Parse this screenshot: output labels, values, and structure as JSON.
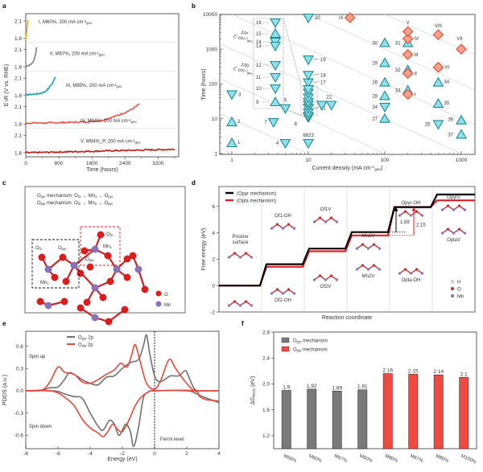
{
  "panel_labels": [
    "a",
    "b",
    "c",
    "d",
    "e",
    "f"
  ],
  "chart_data": [
    {
      "panel": "a",
      "type": "line",
      "xlabel": "Time (hours)",
      "ylabel": "E-iR (V vs. RHE)",
      "x_ticks": [
        0,
        800,
        1600,
        2400,
        3200
      ],
      "xlim": [
        0,
        3700
      ],
      "y_ticks_per_row": [
        2.1,
        1.8
      ],
      "series": [
        {
          "name": "I, M60%, 200 mA cm-2geo",
          "label_main": "I, M60%, 200 mA cm",
          "label_sup": "-2",
          "label_sub": "geo",
          "color": "#e8b020",
          "x": [
            0,
            10,
            20,
            30,
            40,
            50
          ],
          "y": [
            1.78,
            1.85,
            1.9,
            1.96,
            2.05,
            2.12
          ]
        },
        {
          "name": "II, M67%, 200 mA cm-2geo",
          "label_main": "II, M67%, 200 mA cm",
          "label_sup": "-2",
          "label_sub": "geo",
          "color": "#808080",
          "x": [
            0,
            50,
            100,
            150,
            200,
            230,
            260
          ],
          "y": [
            1.8,
            1.82,
            1.84,
            1.86,
            1.92,
            2.0,
            2.14
          ]
        },
        {
          "name": "III, M85%, 200 mA cm-2geo",
          "label_main": "III, M85%, 200 mA cm",
          "label_sup": "-2",
          "label_sub": "geo",
          "color": "#1e9ab8",
          "x": [
            0,
            150,
            300,
            450,
            550,
            650,
            720
          ],
          "y": [
            1.81,
            1.82,
            1.83,
            1.86,
            1.92,
            2.02,
            2.12
          ]
        },
        {
          "name": "IV, M94%, 200 mA cm-2geo",
          "label_main": "IV, M94%, 200 mA cm",
          "label_sup": "-2",
          "label_sub": "geo",
          "color": "#e8564a",
          "x": [
            0,
            500,
            1000,
            1500,
            1800,
            2100,
            2400,
            2600,
            2750
          ],
          "y": [
            1.82,
            1.82,
            1.83,
            1.84,
            1.86,
            1.92,
            2.0,
            2.07,
            2.15
          ]
        },
        {
          "name": "V, M94%_P, 200 mA cm-2geo",
          "label_main": "V, M94%_P, 200 mA cm",
          "label_sup": "-2",
          "label_sub": "geo",
          "color": "#c01a14",
          "x": [
            0,
            600,
            1200,
            1800,
            2400,
            3000,
            3600
          ],
          "y": [
            1.8,
            1.81,
            1.82,
            1.83,
            1.84,
            1.85,
            1.86
          ]
        }
      ]
    },
    {
      "panel": "b",
      "type": "scatter",
      "xlabel": "Current density (mA cm-2geo)",
      "xlabel_main": "Current density (mA cm",
      "xlabel_sup": "-2",
      "xlabel_sub": "geo",
      "xlabel_end": ")",
      "ylabel": "Time (hours)",
      "xscale": "log",
      "yscale": "log",
      "xlim": [
        0.85,
        1200
      ],
      "ylim": [
        1,
        10000
      ],
      "x_ticks": [
        "1",
        "10",
        "100",
        "1000"
      ],
      "y_ticks": [
        "1",
        "10",
        "100",
        "1000",
        "10000"
      ],
      "iso_labels": [
        {
          "text": "10",
          "sup": "4",
          "line2": "C cm",
          "sup2": "-2",
          "sub2": "geo"
        },
        {
          "text": "100",
          "sup": "",
          "line2": "C cm",
          "sup2": "-2",
          "sub2": "geo"
        }
      ],
      "points_triangle_up": [
        {
          "id": "1",
          "x": 1,
          "y": 2
        },
        {
          "id": "2",
          "x": 1,
          "y": 8
        },
        {
          "id": "15",
          "x": 1,
          "y": 2500,
          "inset": true
        },
        {
          "id": "9",
          "x": 1,
          "y": 23,
          "inset": true
        },
        {
          "id": "30",
          "x": 100,
          "y": 1500
        },
        {
          "id": "29",
          "x": 100,
          "y": 400
        },
        {
          "id": "26",
          "x": 100,
          "y": 110
        },
        {
          "id": "28",
          "x": 100,
          "y": 45
        },
        {
          "id": "27",
          "x": 100,
          "y": 10
        },
        {
          "id": "31",
          "x": 200,
          "y": 1500
        },
        {
          "id": "32",
          "x": 200,
          "y": 250
        },
        {
          "id": "33",
          "x": 200,
          "y": 65
        },
        {
          "id": "34",
          "x": 500,
          "y": 110
        },
        {
          "id": "35",
          "x": 500,
          "y": 27
        },
        {
          "id": "36",
          "x": 1000,
          "y": 9
        },
        {
          "id": "37",
          "x": 1000,
          "y": 3.5
        }
      ],
      "points_triangle_down": [
        {
          "id": "3",
          "x": 1,
          "y": 50
        },
        {
          "id": "4",
          "x": 5,
          "y": 2
        },
        {
          "id": "5",
          "x": 5,
          "y": 20
        },
        {
          "id": "7",
          "x": 3.5,
          "y": 8
        },
        {
          "id": "6823",
          "x": 10,
          "y": 2
        },
        {
          "id": "8",
          "x": 10,
          "y": 11
        },
        {
          "id": "21",
          "x": 10,
          "y": 20
        },
        {
          "id": "17",
          "x": 10,
          "y": 110
        },
        {
          "id": "18",
          "x": 10,
          "y": 180
        },
        {
          "id": "19",
          "x": 10,
          "y": 500
        },
        {
          "id": "20",
          "x": 10,
          "y": 8000
        },
        {
          "id": "22",
          "x": 15,
          "y": 25
        },
        {
          "id": "22b",
          "x": 20,
          "y": 25
        },
        {
          "id": "24",
          "x": 100,
          "y": 22
        },
        {
          "id": "25",
          "x": 500,
          "y": 7
        },
        {
          "id": "16",
          "x": 1,
          "y": 7000,
          "inset": true
        },
        {
          "id": "14",
          "x": 1,
          "y": 1400,
          "inset": true
        },
        {
          "id": "13",
          "x": 1,
          "y": 1000,
          "inset": true
        },
        {
          "id": "12",
          "x": 1,
          "y": 330,
          "inset": true
        },
        {
          "id": "11",
          "x": 1,
          "y": 150,
          "inset": true
        },
        {
          "id": "10",
          "x": 1,
          "y": 75,
          "inset": true
        }
      ],
      "points_diamond": [
        {
          "id": "I",
          "x": 200,
          "y": 50
        },
        {
          "id": "II",
          "x": 200,
          "y": 200
        },
        {
          "id": "III",
          "x": 200,
          "y": 700
        },
        {
          "id": "IV",
          "x": 200,
          "y": 2000
        },
        {
          "id": "V",
          "x": 200,
          "y": 3200
        },
        {
          "id": "VI",
          "x": 500,
          "y": 300
        },
        {
          "id": "VII",
          "x": 1000,
          "y": 1000
        },
        {
          "id": "VIII",
          "x": 500,
          "y": 2600
        },
        {
          "id": "IX",
          "x": 35,
          "y": 8000
        }
      ],
      "cluster_values_at_10": [
        12,
        15,
        20,
        25,
        30,
        40,
        55,
        70
      ]
    },
    {
      "panel": "d",
      "type": "line",
      "xlabel": "Reaction coordinate",
      "ylabel": "Free energy (eV)",
      "ylim": [
        -2,
        7.5
      ],
      "y_ticks": [
        -2,
        0,
        2,
        4,
        6
      ],
      "series": [
        {
          "name": "(Opyr mechanism)",
          "color": "#000000",
          "levels": [
            0,
            1.62,
            2.8,
            4.05,
            5.94,
            6.9
          ]
        },
        {
          "name": "(Opla mechanism)",
          "color": "#e02020",
          "levels": [
            0,
            1.42,
            2.6,
            3.8,
            5.95,
            6.45
          ]
        }
      ],
      "step_labels_top": [
        "Pristine surface",
        "Of1-OH",
        "Of1V",
        "Mn1V",
        "Opyr-OH",
        "OpyrV"
      ],
      "step_labels_bottom": [
        "",
        "Of2-OH",
        "Of2V",
        "Mn2V",
        "Opla-OH",
        "OplaV"
      ],
      "annotations": [
        {
          "text": "1.89",
          "color": "#000000"
        },
        {
          "text": "2.15",
          "color": "#e02020"
        }
      ],
      "legend_atoms": [
        "H",
        "O",
        "Mn"
      ]
    },
    {
      "panel": "e",
      "type": "line",
      "xlabel": "Energy (eV)",
      "ylabel": "PDOS (a.u.)",
      "xlim": [
        -8,
        4
      ],
      "ylim": [
        -0.78,
        0.8
      ],
      "x_ticks": [
        -8,
        -6,
        -4,
        -2,
        0,
        2,
        4
      ],
      "y_ticks": [
        0.6,
        0.3,
        0.0,
        -0.3,
        -0.6
      ],
      "annotations": [
        "Spin up",
        "Spin down",
        "Fermi level"
      ],
      "series": [
        {
          "name": "Opyr 2p",
          "color": "#707070",
          "up": [
            [
              -8,
              0
            ],
            [
              -7,
              0.01
            ],
            [
              -6.5,
              0.04
            ],
            [
              -6,
              0.05
            ],
            [
              -5.6,
              0.15
            ],
            [
              -5.3,
              0.24
            ],
            [
              -5,
              0.22
            ],
            [
              -4.5,
              0.15
            ],
            [
              -4,
              0.1
            ],
            [
              -3.5,
              0.08
            ],
            [
              -3,
              0.18
            ],
            [
              -2.5,
              0.2
            ],
            [
              -2,
              0.3
            ],
            [
              -1.5,
              0.38
            ],
            [
              -1,
              0.42
            ],
            [
              -0.7,
              0.6
            ],
            [
              -0.5,
              0.75
            ],
            [
              -0.3,
              0.5
            ],
            [
              0,
              0.2
            ],
            [
              0.3,
              0.12
            ],
            [
              0.7,
              0.16
            ],
            [
              1,
              0.2
            ],
            [
              1.5,
              0.2
            ],
            [
              1.9,
              0.27
            ],
            [
              2.1,
              0.2
            ],
            [
              2.5,
              0.02
            ],
            [
              3,
              0
            ],
            [
              4,
              0
            ]
          ],
          "down": [
            [
              -8,
              0
            ],
            [
              -6.5,
              0
            ],
            [
              -6,
              -0.01
            ],
            [
              -5.5,
              -0.05
            ],
            [
              -5,
              -0.08
            ],
            [
              -4.5,
              -0.1
            ],
            [
              -4,
              -0.3
            ],
            [
              -3.5,
              -0.48
            ],
            [
              -3.2,
              -0.53
            ],
            [
              -2.8,
              -0.4
            ],
            [
              -2.5,
              -0.45
            ],
            [
              -2.2,
              -0.6
            ],
            [
              -1.8,
              -0.45
            ],
            [
              -1.5,
              -0.55
            ],
            [
              -1.3,
              -0.75
            ],
            [
              -1,
              -0.5
            ],
            [
              -0.7,
              -0.1
            ],
            [
              -0.4,
              -0.02
            ],
            [
              0,
              0
            ],
            [
              2,
              0
            ],
            [
              2.5,
              -0.03
            ],
            [
              3,
              -0.08
            ],
            [
              3.5,
              -0.12
            ],
            [
              4,
              -0.16
            ]
          ]
        },
        {
          "name": "Opla 2p",
          "color": "#e8483c",
          "up": [
            [
              -8,
              0
            ],
            [
              -7,
              0.01
            ],
            [
              -6.5,
              0.12
            ],
            [
              -6,
              0.32
            ],
            [
              -5.6,
              0.25
            ],
            [
              -5,
              0.22
            ],
            [
              -4.5,
              0.12
            ],
            [
              -4,
              0.1
            ],
            [
              -3.5,
              0.15
            ],
            [
              -3,
              0.22
            ],
            [
              -2.5,
              0.28
            ],
            [
              -2.1,
              0.37
            ],
            [
              -1.7,
              0.32
            ],
            [
              -1.4,
              0.5
            ],
            [
              -1.2,
              0.62
            ],
            [
              -0.9,
              0.4
            ],
            [
              -0.5,
              0.1
            ],
            [
              0,
              0.02
            ],
            [
              0.4,
              0.15
            ],
            [
              0.9,
              0.42
            ],
            [
              1.3,
              0.3
            ],
            [
              1.8,
              0.15
            ],
            [
              2.2,
              0.05
            ],
            [
              2.6,
              0
            ],
            [
              4,
              0
            ]
          ],
          "down": [
            [
              -8,
              0
            ],
            [
              -6.6,
              0
            ],
            [
              -6,
              -0.03
            ],
            [
              -5.5,
              -0.1
            ],
            [
              -5,
              -0.2
            ],
            [
              -4.5,
              -0.38
            ],
            [
              -4,
              -0.5
            ],
            [
              -3.5,
              -0.57
            ],
            [
              -3.2,
              -0.62
            ],
            [
              -2.9,
              -0.55
            ],
            [
              -2.6,
              -0.45
            ],
            [
              -2.3,
              -0.52
            ],
            [
              -2,
              -0.55
            ],
            [
              -1.6,
              -0.4
            ],
            [
              -1.2,
              -0.2
            ],
            [
              -0.8,
              -0.08
            ],
            [
              -0.4,
              -0.02
            ],
            [
              0,
              0
            ],
            [
              2.4,
              0
            ],
            [
              2.8,
              -0.08
            ],
            [
              3.2,
              -0.12
            ],
            [
              3.6,
              -0.13
            ],
            [
              4,
              -0.14
            ]
          ]
        }
      ]
    },
    {
      "panel": "f",
      "type": "bar",
      "ylabel": "ΔGPDS (eV)",
      "ylabel_main": "ΔG",
      "ylabel_sub": "PDS",
      "ylabel_end": " (eV)",
      "ylim": [
        1.0,
        2.8
      ],
      "y_ticks": [
        1.2,
        1.6,
        2.0,
        2.4,
        2.8
      ],
      "categories": [
        "M50%",
        "M60%",
        "M67%",
        "M50%",
        "M80%",
        "M67%",
        "M80%",
        "M100%"
      ],
      "values": [
        1.9,
        1.92,
        1.89,
        1.91,
        2.16,
        2.15,
        2.14,
        2.1
      ],
      "value_labels": [
        "1.9",
        "1.92",
        "1.89",
        "1.91",
        "2.16",
        "2.15",
        "2.14",
        "2.1"
      ],
      "groups": [
        "Opyr",
        "Opyr",
        "Opyr",
        "Opyr",
        "Opla",
        "Opla",
        "Opla",
        "Opla"
      ],
      "legend": [
        {
          "name": "Opyr mechanism",
          "main": "O",
          "sub": "pyr",
          "rest": " mechanism",
          "color": "#7a7a7a"
        },
        {
          "name": "Opla mechanism",
          "main": "O",
          "sub": "pla",
          "rest": " mechanism",
          "color": "#f04a40"
        }
      ]
    }
  ],
  "panel_c": {
    "line1": {
      "a": "O",
      "a_sub": "pyr",
      "b": " mechanism:  O",
      "b_sub": "f1",
      "c": " → Mn",
      "c_sub": "1",
      "d": " → O",
      "d_sub": "pyr"
    },
    "line2": {
      "a": "O",
      "a_sub": "pla",
      "b": " mechanism:  O",
      "b_sub": "f2",
      "c": " → Mn",
      "c_sub": "2",
      "d": " → O",
      "d_sub": "pla"
    },
    "labels": {
      "of1": "f1",
      "opyr": "pyr",
      "mn1": "1",
      "of2": "f2",
      "mn2": "2",
      "opla": "pla"
    },
    "legend": [
      "O",
      "Mn"
    ]
  },
  "colors": {
    "O": "#e21a1a",
    "Mn": "#8a72b8",
    "H": "#d8d8d8"
  }
}
